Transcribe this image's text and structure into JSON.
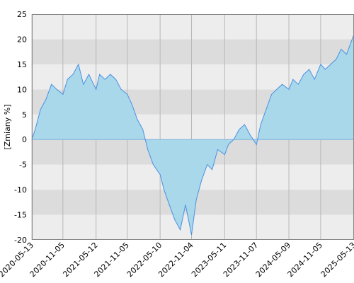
{
  "chart_data": {
    "type": "area",
    "title": "",
    "xlabel": "",
    "ylabel": "[Zmiany %]",
    "ylim": [
      -20,
      25
    ],
    "yticks": [
      -20,
      -15,
      -10,
      -5,
      0,
      5,
      10,
      15,
      20,
      25
    ],
    "y_tick_labels": [
      "-20",
      "-15",
      "-10",
      "-5",
      "0",
      "5",
      "10",
      "15",
      "20",
      "25"
    ],
    "x_tick_labels": [
      "2020-05-13",
      "2020-11-05",
      "2021-05-12",
      "2021-11-05",
      "2022-05-10",
      "2022-11-04",
      "2023-05-11",
      "2023-11-07",
      "2024-05-09",
      "2024-11-05",
      "2025-05-13"
    ],
    "xlim": [
      "2020-05-13",
      "2025-05-13"
    ],
    "grid": true,
    "band_colors": [
      "#ededed",
      "#dcdcdc"
    ],
    "colors": {
      "line": "#4a90e2",
      "fill": "#a8d8ea"
    },
    "series": [
      {
        "x": [
          "2020-05-13",
          "2020-06-01",
          "2020-07-01",
          "2020-08-01",
          "2020-09-01",
          "2020-10-01",
          "2020-11-05",
          "2020-12-01",
          "2021-01-01",
          "2021-02-01",
          "2021-03-01",
          "2021-04-01",
          "2021-05-12",
          "2021-06-01",
          "2021-07-01",
          "2021-08-01",
          "2021-09-01",
          "2021-10-01",
          "2021-11-05",
          "2021-12-01",
          "2022-01-01",
          "2022-02-01",
          "2022-03-01",
          "2022-04-01",
          "2022-05-10",
          "2022-06-01",
          "2022-07-01",
          "2022-08-01",
          "2022-09-01",
          "2022-10-01",
          "2022-11-04",
          "2022-12-01",
          "2023-01-01",
          "2023-02-01",
          "2023-03-01",
          "2023-04-01",
          "2023-05-11",
          "2023-06-01",
          "2023-07-01",
          "2023-08-01",
          "2023-09-01",
          "2023-10-01",
          "2023-11-07",
          "2023-12-01",
          "2024-01-01",
          "2024-02-01",
          "2024-03-01",
          "2024-04-01",
          "2024-05-09",
          "2024-06-01",
          "2024-07-01",
          "2024-08-01",
          "2024-09-01",
          "2024-10-01",
          "2024-11-05",
          "2024-12-01",
          "2025-01-01",
          "2025-02-01",
          "2025-03-01",
          "2025-04-01",
          "2025-05-13"
        ],
        "values": [
          0,
          2,
          6,
          8,
          11,
          10,
          9,
          12,
          13,
          15,
          11,
          13,
          10,
          13,
          12,
          13,
          12,
          10,
          9,
          7,
          4,
          2,
          -2,
          -5,
          -7,
          -10,
          -13,
          -16,
          -18,
          -13,
          -19,
          -12,
          -8,
          -5,
          -6,
          -2,
          -3,
          -1,
          0,
          2,
          3,
          1,
          -1,
          3,
          6,
          9,
          10,
          11,
          10,
          12,
          11,
          13,
          14,
          12,
          15,
          14,
          15,
          16,
          18,
          17,
          21
        ]
      }
    ]
  }
}
